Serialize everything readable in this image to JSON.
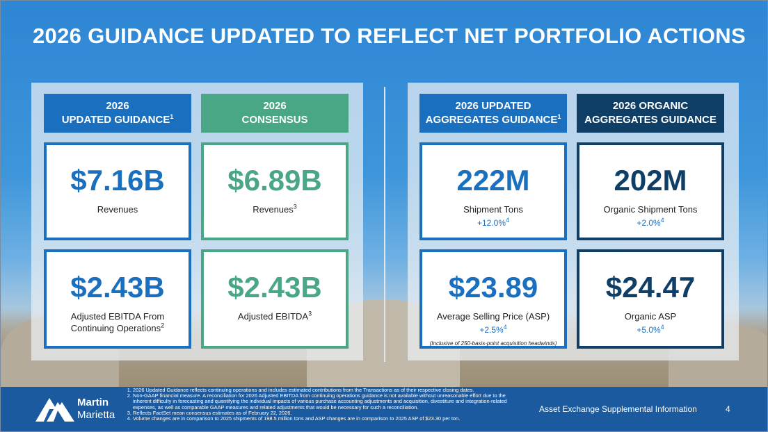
{
  "title": "2026 GUIDANCE UPDATED TO REFLECT NET PORTFOLIO ACTIONS",
  "colors": {
    "blue": "#1a6fbf",
    "green": "#4aa785",
    "navy": "#0f3e66",
    "footer": "#1b5a9e"
  },
  "left": {
    "col1_header": {
      "line1": "2026",
      "line2": "UPDATED GUIDANCE",
      "sup": "1"
    },
    "col2_header": {
      "line1": "2026",
      "line2": "CONSENSUS"
    },
    "cards": [
      {
        "value": "$7.16B",
        "label": "Revenues"
      },
      {
        "value": "$6.89B",
        "label": "Revenues",
        "sup": "3"
      },
      {
        "value": "$2.43B",
        "label1": "Adjusted EBITDA From",
        "label2": "Continuing Operations",
        "sup": "2"
      },
      {
        "value": "$2.43B",
        "label": "Adjusted EBITDA",
        "sup": "3"
      }
    ]
  },
  "right": {
    "col1_header": {
      "line1": "2026 UPDATED",
      "line2": "AGGREGATES GUIDANCE",
      "sup": "1"
    },
    "col2_header": {
      "line1": "2026 ORGANIC",
      "line2": "AGGREGATES GUIDANCE"
    },
    "cards": [
      {
        "value": "222M",
        "label": "Shipment Tons",
        "change": "+12.0%",
        "sup": "4"
      },
      {
        "value": "202M",
        "label": "Organic Shipment Tons",
        "change": "+2.0%",
        "sup": "4"
      },
      {
        "value": "$23.89",
        "label": "Average Selling Price (ASP)",
        "change": "+2.5%",
        "sup": "4",
        "note": "(Inclusive of 250-basis-point acquisition headwinds)"
      },
      {
        "value": "$24.47",
        "label": "Organic ASP",
        "change": "+5.0%",
        "sup": "4"
      }
    ]
  },
  "footer": {
    "logo_line1": "Martin",
    "logo_line2": "Marietta",
    "footnotes": [
      "2026 Updated Guidance reflects continuing operations and includes estimated contributions from the Transactions as of their respective closing dates.",
      "Non-GAAP financial measure. A reconciliation for 2026 Adjusted EBITDA from continuing operations guidance is not available without unreasonable effort due to the inherent difficulty in forecasting and quantifying the individual impacts of various purchase accounting adjustments and acquisition, divestiture and integration-related expenses, as well as comparable GAAP measures and related adjustments that would be necessary for such a reconciliation.",
      "Reflects FactSet mean consensus estimates as of February 22, 2026.",
      "Volume changes are in comparison to 2025 shipments of 198.5 million tons and ASP changes are in comparison to 2025 ASP of $23.30 per ton."
    ],
    "section": "Asset Exchange Supplemental Information",
    "page": "4"
  }
}
